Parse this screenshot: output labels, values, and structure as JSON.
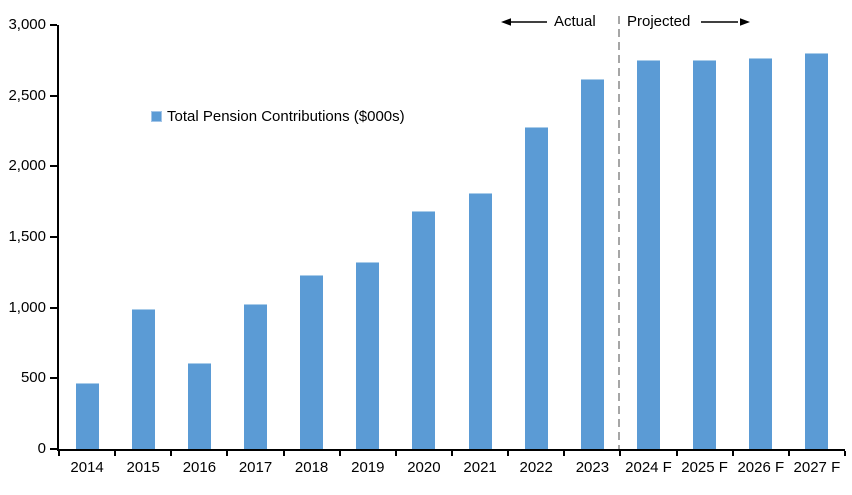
{
  "chart_data": {
    "type": "bar",
    "title": "",
    "categories": [
      "2014",
      "2015",
      "2016",
      "2017",
      "2018",
      "2019",
      "2020",
      "2021",
      "2022",
      "2023",
      "2024 F",
      "2025 F",
      "2026 F",
      "2027 F"
    ],
    "values": [
      465,
      990,
      610,
      1025,
      1230,
      1320,
      1685,
      1815,
      2280,
      2615,
      2755,
      2750,
      2770,
      2800
    ],
    "series_name": "Total Pension Contributions ($000s)",
    "xlabel": "",
    "ylabel": "",
    "ylim": [
      0,
      3000
    ],
    "y_ticks": [
      0,
      500,
      1000,
      1500,
      2000,
      2500,
      3000
    ],
    "y_tick_labels": [
      "0",
      "500",
      "1,000",
      "1,500",
      "2,000",
      "2,500",
      "3,000"
    ],
    "grid": false,
    "legend_position": "inside-upper-left",
    "bar_color": "#5B9BD5",
    "divider": {
      "between": [
        "2023",
        "2024 F"
      ],
      "style": "dashed",
      "color": "#A6A6A6"
    },
    "annotations": [
      {
        "text": "Actual",
        "arrow": "left",
        "side": "left-of-divider"
      },
      {
        "text": "Projected",
        "arrow": "right",
        "side": "right-of-divider"
      }
    ]
  },
  "legend": {
    "label": "Total Pension Contributions ($000s)",
    "swatch_color": "#5B9BD5"
  },
  "annotations": {
    "actual_label": "Actual",
    "projected_label": "Projected"
  },
  "colors": {
    "bar": "#5B9BD5",
    "divider": "#A6A6A6",
    "axis": "#000000",
    "text": "#000000",
    "background": "#FFFFFF"
  }
}
